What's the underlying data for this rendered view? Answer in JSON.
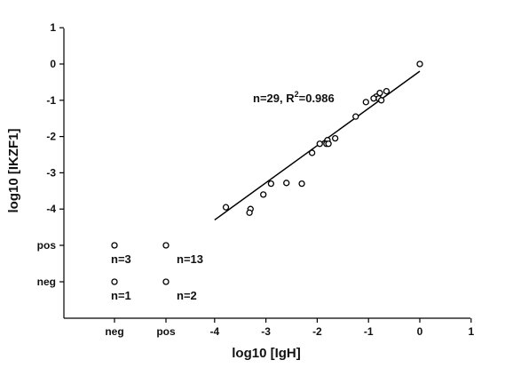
{
  "chart_data": {
    "type": "scatter",
    "xlabel": "log10 [IgH]",
    "ylabel": "log10 [IKZF1]",
    "xlim": [
      -4,
      1
    ],
    "ylim": [
      -5,
      1
    ],
    "x_ticks": [
      -4,
      -3,
      -2,
      -1,
      0,
      1
    ],
    "y_ticks": [
      -4,
      -3,
      -2,
      -1,
      0,
      1
    ],
    "x_categories": [
      "neg",
      "pos"
    ],
    "y_categories": [
      "pos",
      "neg"
    ],
    "points": [
      {
        "x": 0.0,
        "y": 0.0
      },
      {
        "x": -0.65,
        "y": -0.75
      },
      {
        "x": -0.78,
        "y": -0.8
      },
      {
        "x": -0.85,
        "y": -0.9
      },
      {
        "x": -0.8,
        "y": -0.95
      },
      {
        "x": -0.9,
        "y": -0.95
      },
      {
        "x": -0.75,
        "y": -1.0
      },
      {
        "x": -1.05,
        "y": -1.05
      },
      {
        "x": -1.25,
        "y": -1.45
      },
      {
        "x": -1.65,
        "y": -2.05
      },
      {
        "x": -1.8,
        "y": -2.1
      },
      {
        "x": -1.82,
        "y": -2.2
      },
      {
        "x": -1.78,
        "y": -2.2
      },
      {
        "x": -1.95,
        "y": -2.2
      },
      {
        "x": -2.1,
        "y": -2.45
      },
      {
        "x": -2.3,
        "y": -3.3
      },
      {
        "x": -2.6,
        "y": -3.28
      },
      {
        "x": -2.9,
        "y": -3.3
      },
      {
        "x": -3.05,
        "y": -3.6
      },
      {
        "x": -3.3,
        "y": -4.0
      },
      {
        "x": -3.32,
        "y": -4.1
      },
      {
        "x": -3.78,
        "y": -3.95
      }
    ],
    "regression": {
      "x": [
        -4,
        0
      ],
      "y": [
        -4.3,
        -0.2
      ]
    },
    "categorical_points": [
      {
        "x": "neg",
        "y": "pos",
        "label": "n=3"
      },
      {
        "x": "pos",
        "y": "pos",
        "label": "n=13"
      },
      {
        "x": "neg",
        "y": "neg",
        "label": "n=1"
      },
      {
        "x": "pos",
        "y": "neg",
        "label": "n=2"
      }
    ],
    "annotation": {
      "prefix": "n=29, R",
      "sup": "2",
      "suffix": "=0.986"
    },
    "grid": false,
    "legend": "none"
  }
}
